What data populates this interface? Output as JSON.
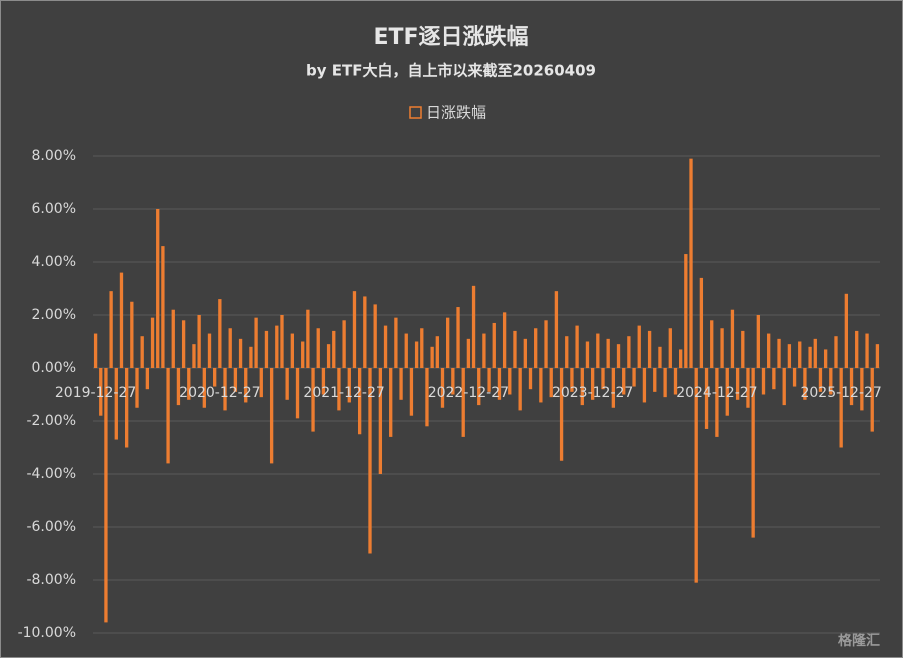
{
  "chart_data": {
    "type": "bar",
    "title": "ETF逐日涨跌幅",
    "subtitle": "by ETF大白，自上市以来截至20260409",
    "watermark": "格隆汇",
    "legend": "top",
    "grid": true,
    "categories": [
      "2019-12-27",
      null,
      null,
      null,
      null,
      null,
      null,
      null,
      null,
      null,
      null,
      null,
      null,
      null,
      null,
      null,
      null,
      null,
      null,
      null,
      null,
      null,
      null,
      null,
      "2020-12-27",
      null,
      null,
      null,
      null,
      null,
      null,
      null,
      null,
      null,
      null,
      null,
      null,
      null,
      null,
      null,
      null,
      null,
      null,
      null,
      null,
      null,
      null,
      null,
      "2021-12-27",
      null,
      null,
      null,
      null,
      null,
      null,
      null,
      null,
      null,
      null,
      null,
      null,
      null,
      null,
      null,
      null,
      null,
      null,
      null,
      null,
      null,
      null,
      null,
      "2022-12-27",
      null,
      null,
      null,
      null,
      null,
      null,
      null,
      null,
      null,
      null,
      null,
      null,
      null,
      null,
      null,
      null,
      null,
      null,
      null,
      null,
      null,
      null,
      null,
      "2023-12-27",
      null,
      null,
      null,
      null,
      null,
      null,
      null,
      null,
      null,
      null,
      null,
      null,
      null,
      null,
      null,
      null,
      null,
      null,
      null,
      null,
      null,
      null,
      null,
      "2024-12-27",
      null,
      null,
      null,
      null,
      null,
      null,
      null,
      null,
      null,
      null,
      null,
      null,
      null,
      null,
      null,
      null,
      null,
      null,
      null,
      null,
      null,
      null,
      null,
      "2025-12-27",
      null,
      null,
      null,
      null,
      null,
      null,
      null
    ],
    "series": [
      {
        "name": "日涨跌幅",
        "color": "#ed7d31",
        "values": [
          1.3,
          -1.8,
          -9.6,
          2.9,
          -2.7,
          3.6,
          -3.0,
          2.5,
          -1.5,
          1.2,
          -0.8,
          1.9,
          6.0,
          4.6,
          -3.6,
          2.2,
          -1.4,
          1.8,
          -1.2,
          0.9,
          2.0,
          -1.5,
          1.3,
          -0.7,
          2.6,
          -1.6,
          1.5,
          -0.9,
          1.1,
          -1.3,
          0.8,
          1.9,
          -1.1,
          1.4,
          -3.6,
          1.6,
          2.0,
          -1.2,
          1.3,
          -1.9,
          1.0,
          2.2,
          -2.4,
          1.5,
          -1.0,
          0.9,
          1.4,
          -1.6,
          1.8,
          -1.3,
          2.9,
          -2.5,
          2.7,
          -7.0,
          2.4,
          -4.0,
          1.6,
          -2.6,
          1.9,
          -1.2,
          1.3,
          -1.8,
          1.0,
          1.5,
          -2.2,
          0.8,
          1.2,
          -1.5,
          1.9,
          -1.0,
          2.3,
          -2.6,
          1.1,
          3.1,
          -1.4,
          1.3,
          -0.9,
          1.7,
          -1.2,
          2.1,
          -1.0,
          1.4,
          -1.6,
          1.1,
          -0.8,
          1.5,
          -1.3,
          1.8,
          -1.1,
          2.9,
          -3.5,
          1.2,
          -0.9,
          1.6,
          -1.4,
          1.0,
          -1.2,
          1.3,
          -0.8,
          1.1,
          -1.5,
          0.9,
          -1.0,
          1.2,
          -0.7,
          1.6,
          -1.3,
          1.4,
          -0.9,
          0.8,
          -1.1,
          1.5,
          -1.0,
          0.7,
          4.3,
          7.9,
          -8.1,
          3.4,
          -2.3,
          1.8,
          -2.6,
          1.5,
          -1.8,
          2.2,
          -1.2,
          1.4,
          -1.5,
          -6.4,
          2.0,
          -1.0,
          1.3,
          -0.8,
          1.1,
          -1.4,
          0.9,
          -0.7,
          1.0,
          -1.2,
          0.8,
          1.1,
          -0.9,
          0.7,
          -1.0,
          1.2,
          -3.0,
          2.8,
          -1.4,
          1.4,
          -1.6,
          1.3,
          -2.4,
          0.9
        ]
      }
    ],
    "ylim": [
      -10,
      8
    ],
    "yticks": [
      {
        "value": 8,
        "label": "8.00%"
      },
      {
        "value": 6,
        "label": "6.00%"
      },
      {
        "value": 4,
        "label": "4.00%"
      },
      {
        "value": 2,
        "label": "2.00%"
      },
      {
        "value": 0,
        "label": "0.00%"
      },
      {
        "value": -2,
        "label": "-2.00%"
      },
      {
        "value": -4,
        "label": "-4.00%"
      },
      {
        "value": -6,
        "label": "-6.00%"
      },
      {
        "value": -8,
        "label": "-8.00%"
      },
      {
        "value": -10,
        "label": "-10.00%"
      }
    ]
  }
}
